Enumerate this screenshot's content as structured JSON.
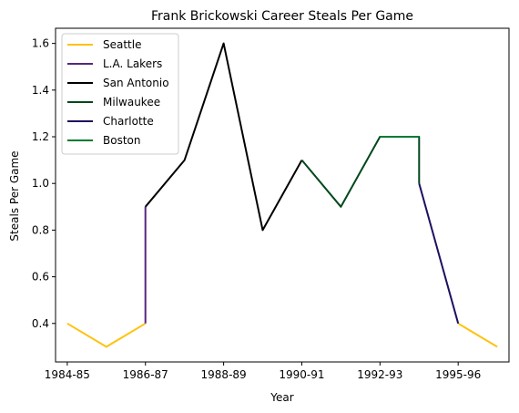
{
  "chart_data": {
    "type": "line",
    "title": "Frank Brickowski Career Steals Per Game",
    "xlabel": "Year",
    "ylabel": "Steals Per Game",
    "x_ticks": [
      "1984-85",
      "1986-87",
      "1988-89",
      "1990-91",
      "1992-93",
      "1995-96"
    ],
    "x_tick_positions": [
      0,
      2,
      4,
      6,
      8,
      10
    ],
    "xlim": [
      -0.3,
      11.3
    ],
    "y_ticks": [
      0.4,
      0.6,
      0.8,
      1.0,
      1.2,
      1.4,
      1.6
    ],
    "ylim": [
      0.235,
      1.665
    ],
    "grid": false,
    "legend_position": "top-left",
    "series": [
      {
        "name": "Seattle",
        "color": "#FFC20E",
        "segments": [
          {
            "x": [
              0,
              1,
              2
            ],
            "y": [
              0.4,
              0.3,
              0.4
            ]
          },
          {
            "x": [
              10,
              11
            ],
            "y": [
              0.4,
              0.3
            ]
          }
        ]
      },
      {
        "name": "L.A. Lakers",
        "color": "#552583",
        "segments": [
          {
            "x": [
              2,
              2
            ],
            "y": [
              0.4,
              0.9
            ]
          }
        ]
      },
      {
        "name": "San Antonio",
        "color": "#000000",
        "segments": [
          {
            "x": [
              2,
              3,
              4,
              5,
              6
            ],
            "y": [
              0.9,
              1.1,
              1.6,
              0.8,
              1.1
            ]
          }
        ]
      },
      {
        "name": "Milwaukee",
        "color": "#00471B",
        "segments": [
          {
            "x": [
              6,
              7,
              8,
              9,
              9
            ],
            "y": [
              1.1,
              0.9,
              1.2,
              1.2,
              1.0
            ]
          }
        ]
      },
      {
        "name": "Charlotte",
        "color": "#1D1160",
        "segments": [
          {
            "x": [
              9,
              10
            ],
            "y": [
              1.0,
              0.4
            ]
          }
        ]
      },
      {
        "name": "Boston",
        "color": "#007A33",
        "segments": [
          {
            "x": [
              8,
              9
            ],
            "y": [
              1.2,
              1.2
            ]
          }
        ]
      }
    ]
  }
}
